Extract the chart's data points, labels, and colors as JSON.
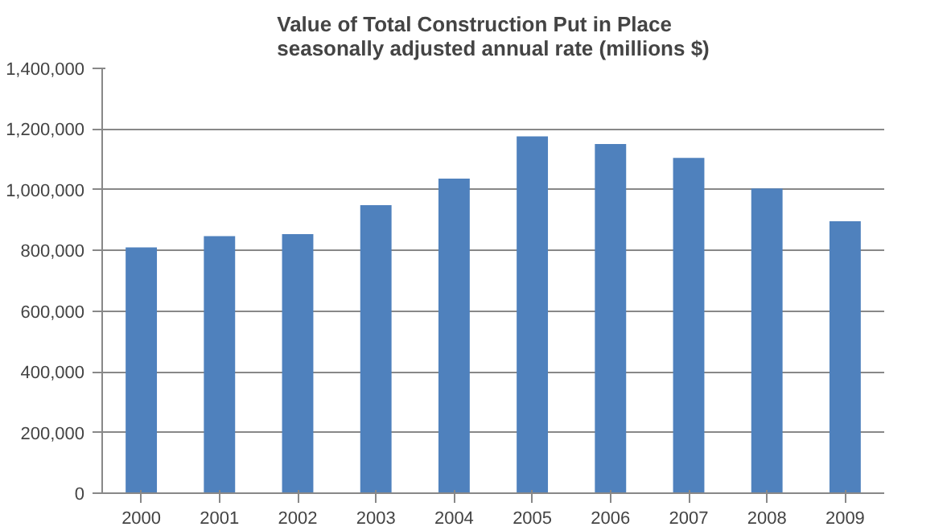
{
  "chart_data": {
    "type": "bar",
    "title": "Value of Total Construction Put in Place\nseasonally adjusted annual rate (millions $)",
    "categories": [
      "2000",
      "2001",
      "2002",
      "2003",
      "2004",
      "2005",
      "2006",
      "2007",
      "2008",
      "2009"
    ],
    "values": [
      810000,
      847000,
      854000,
      949000,
      1037000,
      1176000,
      1151000,
      1105000,
      1004000,
      896000
    ],
    "color": "#4f81bd",
    "ylim": [
      0,
      1400000
    ],
    "yticks": [
      {
        "value": 0,
        "label": "0"
      },
      {
        "value": 200000,
        "label": "200,000"
      },
      {
        "value": 400000,
        "label": "400,000"
      },
      {
        "value": 600000,
        "label": "600,000"
      },
      {
        "value": 800000,
        "label": "800,000"
      },
      {
        "value": 1000000,
        "label": "1,000,000"
      },
      {
        "value": 1200000,
        "label": "1,200,000"
      },
      {
        "value": 1400000,
        "label": "1,400,000"
      }
    ],
    "grid": "y"
  }
}
